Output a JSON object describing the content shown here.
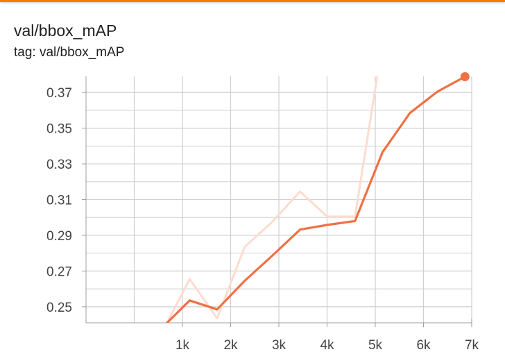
{
  "card": {
    "title": "val/bbox_mAP",
    "tag": "tag: val/bbox_mAP"
  },
  "colors": {
    "accent_bar": "#f57c00",
    "smoothed_line": "#ef7043",
    "raw_line": "#fcdcd0",
    "grid": "#cfcfcf"
  },
  "chart_data": {
    "type": "line",
    "title": "val/bbox_mAP",
    "xlabel": "",
    "ylabel": "",
    "xlim": [
      -1000,
      7000
    ],
    "ylim": [
      0.241,
      0.379
    ],
    "x_ticks": [
      1000,
      2000,
      3000,
      4000,
      5000,
      6000,
      7000
    ],
    "x_tick_labels": [
      "1k",
      "2k",
      "3k",
      "4k",
      "5k",
      "6k",
      "7k"
    ],
    "y_ticks": [
      0.25,
      0.27,
      0.29,
      0.31,
      0.33,
      0.35,
      0.37
    ],
    "y_tick_labels": [
      "0.25",
      "0.27",
      "0.29",
      "0.31",
      "0.33",
      "0.35",
      "0.37"
    ],
    "grid": true,
    "legend": "none",
    "series": [
      {
        "values": [
          {
            "x": 680,
            "y": 0.241
          },
          {
            "x": 1150,
            "y": 0.2655
          },
          {
            "x": 1720,
            "y": 0.2435
          },
          {
            "x": 2290,
            "y": 0.2835
          },
          {
            "x": 2860,
            "y": 0.2975
          },
          {
            "x": 3440,
            "y": 0.3145
          },
          {
            "x": 4000,
            "y": 0.3005
          },
          {
            "x": 4580,
            "y": 0.3005
          },
          {
            "x": 5040,
            "y": 0.379
          }
        ]
      },
      {
        "values": [
          {
            "x": 680,
            "y": 0.241
          },
          {
            "x": 1150,
            "y": 0.2535
          },
          {
            "x": 1720,
            "y": 0.2485
          },
          {
            "x": 2290,
            "y": 0.2645
          },
          {
            "x": 2860,
            "y": 0.2785
          },
          {
            "x": 3440,
            "y": 0.2932
          },
          {
            "x": 4000,
            "y": 0.2958
          },
          {
            "x": 4580,
            "y": 0.298
          },
          {
            "x": 5150,
            "y": 0.3365
          },
          {
            "x": 5720,
            "y": 0.3585
          },
          {
            "x": 6290,
            "y": 0.3705
          },
          {
            "x": 6860,
            "y": 0.3788
          }
        ]
      }
    ]
  }
}
